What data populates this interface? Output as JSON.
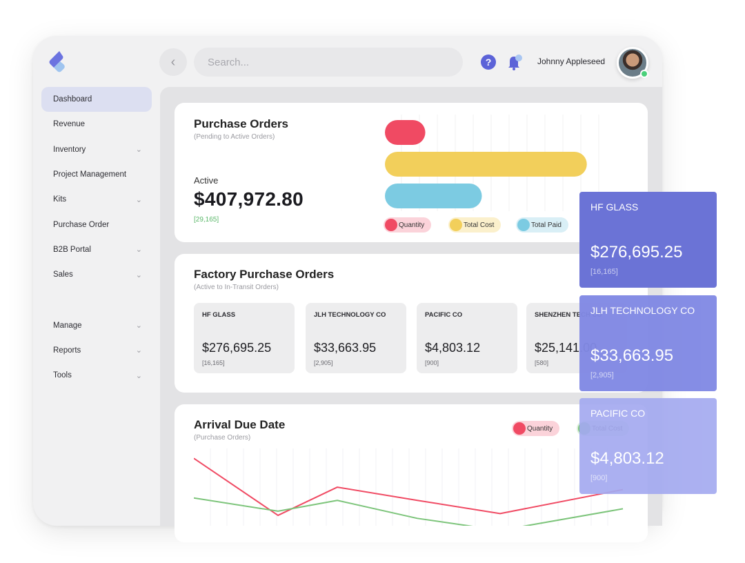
{
  "header": {
    "search_placeholder": "Search...",
    "user_name": "Johnny Appleseed",
    "help_glyph": "?",
    "icons": [
      "logo-icon",
      "back-arrow-icon",
      "help-icon",
      "bell-icon",
      "avatar"
    ]
  },
  "sidebar": {
    "items": [
      {
        "label": "Dashboard",
        "chevron": false,
        "active": true
      },
      {
        "label": "Revenue",
        "chevron": false
      },
      {
        "label": "Inventory",
        "chevron": true
      },
      {
        "label": "Project Management",
        "chevron": false
      },
      {
        "label": "Kits",
        "chevron": true
      },
      {
        "label": "Purchase Order",
        "chevron": false
      },
      {
        "label": "B2B Portal",
        "chevron": true
      },
      {
        "label": "Sales",
        "chevron": true
      }
    ],
    "items2": [
      {
        "label": "Manage",
        "chevron": true
      },
      {
        "label": "Reports",
        "chevron": true
      },
      {
        "label": "Tools",
        "chevron": true
      }
    ]
  },
  "purchase_orders": {
    "title": "Purchase Orders",
    "subtitle": "(Pending to Active Orders)",
    "active_label": "Active",
    "amount": "$407,972.80",
    "count": "[29,165]",
    "legend": [
      {
        "label": "Quantity",
        "color": "#f04a63",
        "bg": "#fbd3da"
      },
      {
        "label": "Total Cost",
        "color": "#f2cf5b",
        "bg": "#fbf0cc"
      },
      {
        "label": "Total Paid",
        "color": "#7ccbe2",
        "bg": "#d9eff6"
      }
    ]
  },
  "factory_orders": {
    "title": "Factory Purchase Orders",
    "subtitle": "(Active to In-Transit Orders)",
    "tiles": [
      {
        "name": "HF GLASS",
        "amount": "$276,695.25",
        "count": "[16,165]"
      },
      {
        "name": "JLH TECHNOLOGY CO",
        "amount": "$33,663.95",
        "count": "[2,905]"
      },
      {
        "name": "PACIFIC CO",
        "amount": "$4,803.12",
        "count": "[900]"
      },
      {
        "name": "SHENZHEN TECH CO",
        "amount": "$25,141.00",
        "count": "[580]"
      }
    ]
  },
  "arrival": {
    "title": "Arrival Due Date",
    "subtitle": "(Purchase Orders)",
    "legend": [
      {
        "label": "Quantity",
        "color": "#f04a63",
        "bg": "#fbd3da"
      },
      {
        "label": "Total Cost",
        "color": "#7cc47a",
        "bg": "#dcefdc"
      }
    ]
  },
  "float_cards": [
    {
      "name": "HF GLASS",
      "amount": "$276,695.25",
      "count": "[16,165]",
      "color": "#6b73d6"
    },
    {
      "name": "JLH TECHNOLOGY CO",
      "amount": "$33,663.95",
      "count": "[2,905]",
      "color": "#8189e4"
    },
    {
      "name": "PACIFIC CO",
      "amount": "$4,803.12",
      "count": "[900]",
      "color": "#a4aaf0"
    }
  ],
  "chart_data": [
    {
      "type": "bar",
      "orientation": "horizontal",
      "series": [
        {
          "name": "Quantity",
          "values": [
            20
          ],
          "color": "#f04a63"
        },
        {
          "name": "Total Cost",
          "values": [
            100
          ],
          "color": "#f2cf5b"
        },
        {
          "name": "Total Paid",
          "values": [
            48
          ],
          "color": "#7ccbe2"
        }
      ],
      "xlim": [
        0,
        110
      ],
      "grid": true
    },
    {
      "type": "line",
      "x": [
        0,
        1,
        2,
        3,
        4,
        5
      ],
      "series": [
        {
          "name": "Quantity",
          "values": [
            100,
            5,
            52,
            30,
            8,
            48
          ],
          "color": "#f04a63"
        },
        {
          "name": "Total Cost",
          "values": [
            34,
            12,
            30,
            0,
            -20,
            16
          ],
          "color": "#7cc47a"
        }
      ],
      "ylim": [
        -10,
        105
      ],
      "grid": true
    }
  ]
}
